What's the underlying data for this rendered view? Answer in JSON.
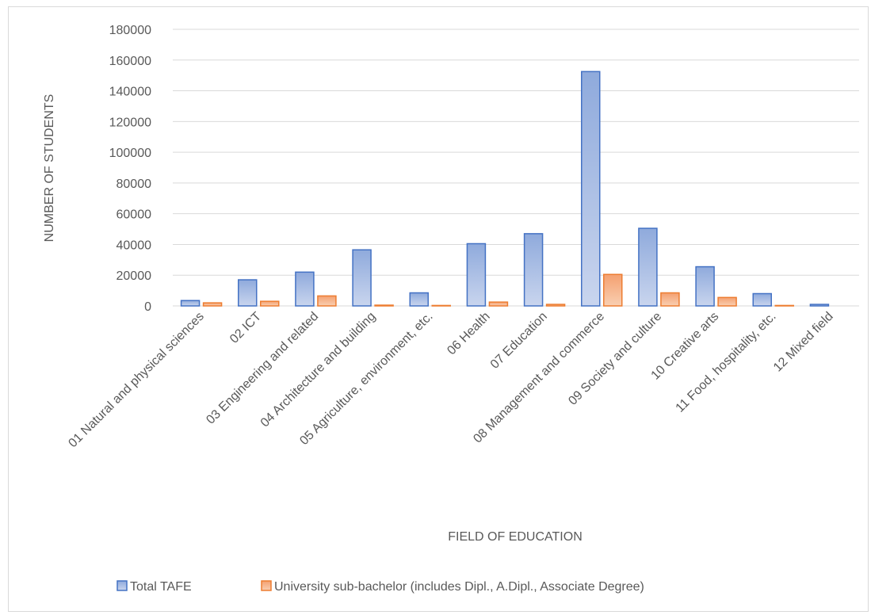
{
  "chart_data": {
    "type": "bar",
    "title": "",
    "xlabel": "FIELD OF EDUCATION",
    "ylabel": "NUMBER OF STUDENTS",
    "ylim": [
      0,
      180000
    ],
    "yticks": [
      0,
      20000,
      40000,
      60000,
      80000,
      100000,
      120000,
      140000,
      160000,
      180000
    ],
    "grid": true,
    "legend_position": "bottom",
    "categories": [
      "01 Natural and physical sciences",
      "02 ICT",
      "03 Engineering and related",
      "04 Architecture and building",
      "05 Agriculture, environment, etc.",
      "06 Health",
      "07 Education",
      "08 Management and commerce",
      "09 Society and culture",
      "10 Creative arts",
      "11 Food, hospitality, etc.",
      "12 Mixed field"
    ],
    "series": [
      {
        "name": "Total TAFE",
        "color": "#4472c4",
        "values": [
          3500,
          17000,
          22000,
          36500,
          8500,
          40500,
          47000,
          152500,
          50500,
          25500,
          8000,
          1000
        ]
      },
      {
        "name": "University sub-bachelor (includes Dipl., A.Dipl., Associate Degree)",
        "color": "#ed7d31",
        "values": [
          2000,
          3000,
          6500,
          500,
          300,
          2500,
          1000,
          20500,
          8500,
          5500,
          300,
          0
        ]
      }
    ]
  }
}
